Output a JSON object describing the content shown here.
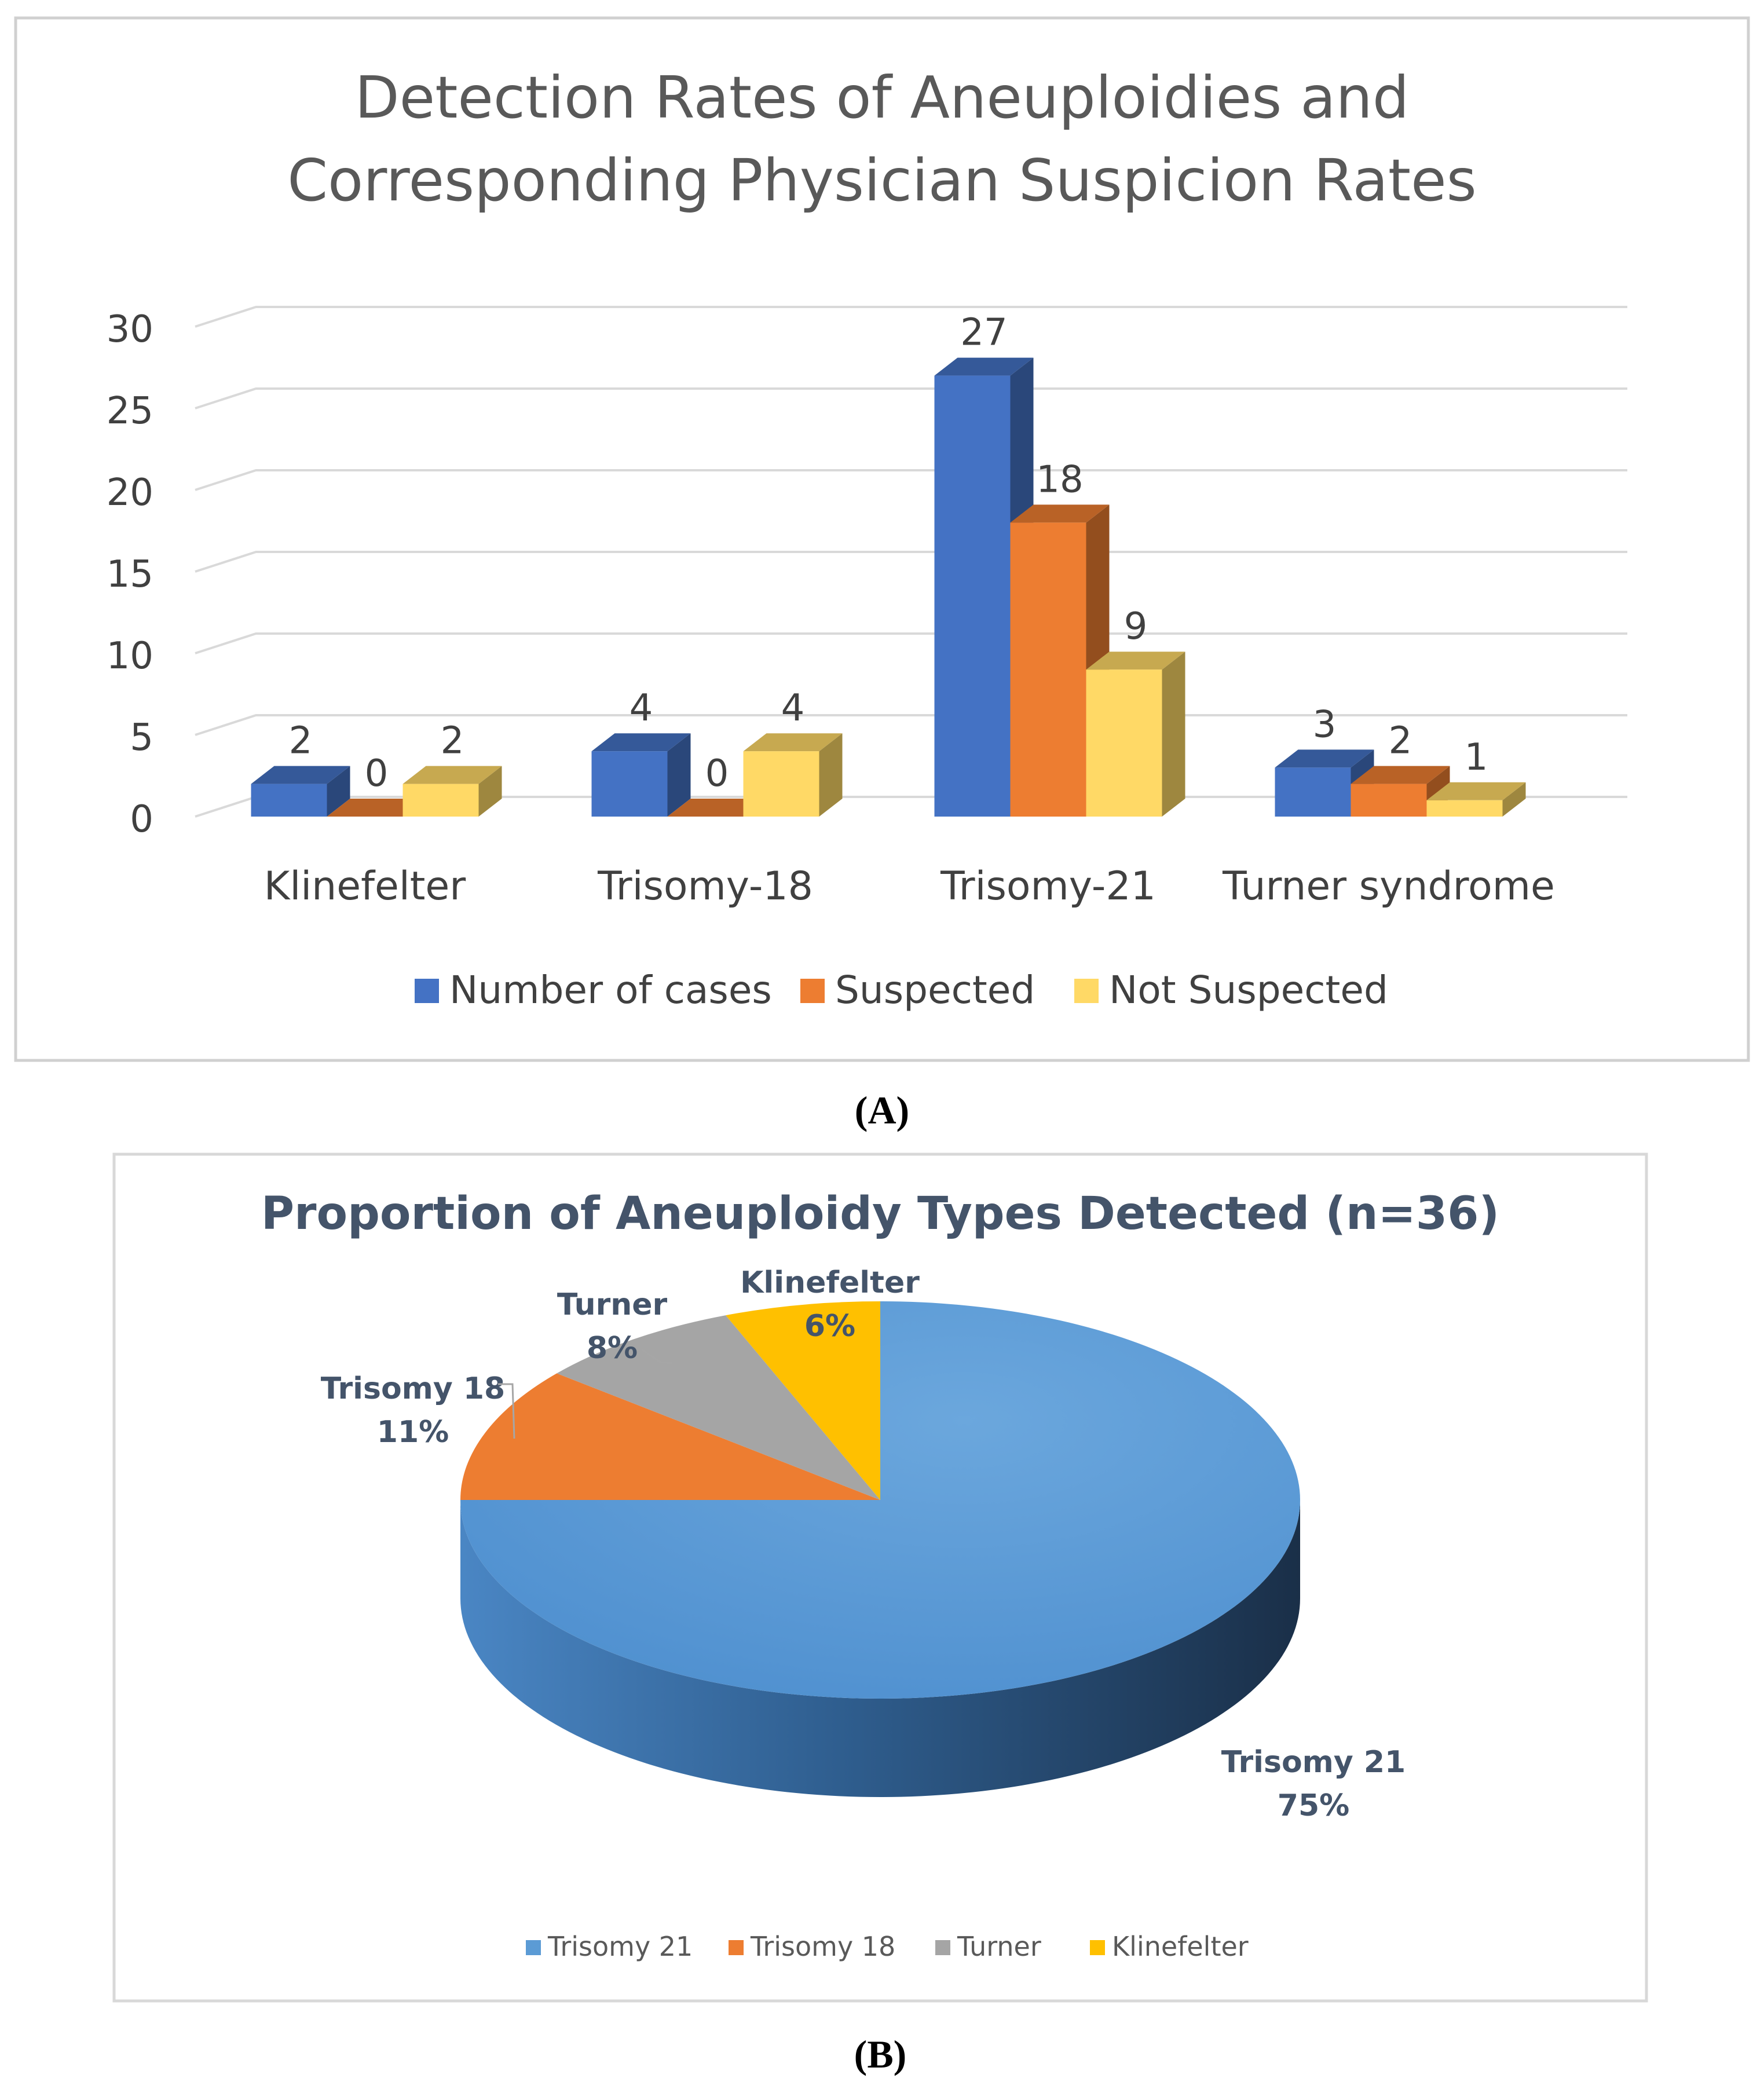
{
  "panel_a_label": "(A)",
  "panel_b_label": "(B)",
  "colors": {
    "blue": "#4472C4",
    "orange": "#ED7D31",
    "yellow": "#FFD966",
    "grid": "#d9d9d9",
    "text": "#404040",
    "pie_blue": "#5B9BD5",
    "pie_orange": "#ED7D31",
    "pie_gray": "#A5A5A5",
    "pie_gold": "#FFC000",
    "pie_title": "#44546A"
  },
  "chart_data": [
    {
      "type": "bar",
      "title_lines": [
        "Detection Rates of Aneuploidies and",
        "Corresponding Physician Suspicion Rates"
      ],
      "categories": [
        "Klinefelter",
        "Trisomy-18",
        "Trisomy-21",
        "Turner syndrome"
      ],
      "series": [
        {
          "name": "Number of cases",
          "values": [
            2,
            4,
            27,
            3
          ],
          "color": "#4472C4"
        },
        {
          "name": "Suspected",
          "values": [
            0,
            0,
            18,
            2
          ],
          "color": "#ED7D31"
        },
        {
          "name": "Not Suspected",
          "values": [
            2,
            4,
            9,
            1
          ],
          "color": "#FFD966"
        }
      ],
      "yticks": [
        "0",
        "5",
        "10",
        "15",
        "20",
        "25",
        "30"
      ],
      "ylim": [
        0,
        30
      ],
      "grid": true,
      "legend": "bottom",
      "style": "3d-clustered-column"
    },
    {
      "type": "pie",
      "title": "Proportion of Aneuploidy Types Detected (n=36)",
      "slices": [
        {
          "label": "Trisomy 21",
          "value": 75,
          "value_label": "75%",
          "color": "#5B9BD5"
        },
        {
          "label": "Trisomy 18",
          "value": 11,
          "value_label": "11%",
          "color": "#ED7D31"
        },
        {
          "label": "Turner",
          "value": 8,
          "value_label": "8%",
          "color": "#A5A5A5"
        },
        {
          "label": "Klinefelter",
          "value": 6,
          "value_label": "6%",
          "color": "#FFC000"
        }
      ],
      "legend": "bottom",
      "style": "3d-pie"
    }
  ]
}
